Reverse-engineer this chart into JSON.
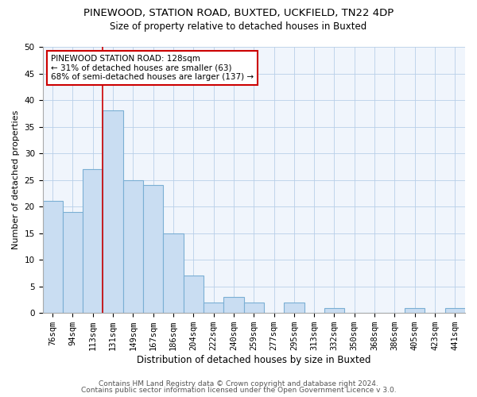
{
  "title": "PINEWOOD, STATION ROAD, BUXTED, UCKFIELD, TN22 4DP",
  "subtitle": "Size of property relative to detached houses in Buxted",
  "xlabel": "Distribution of detached houses by size in Buxted",
  "ylabel": "Number of detached properties",
  "bar_labels": [
    "76sqm",
    "94sqm",
    "113sqm",
    "131sqm",
    "149sqm",
    "167sqm",
    "186sqm",
    "204sqm",
    "222sqm",
    "240sqm",
    "259sqm",
    "277sqm",
    "295sqm",
    "313sqm",
    "332sqm",
    "350sqm",
    "368sqm",
    "386sqm",
    "405sqm",
    "423sqm",
    "441sqm"
  ],
  "bar_values": [
    21,
    19,
    27,
    38,
    25,
    24,
    15,
    7,
    2,
    3,
    2,
    0,
    2,
    0,
    1,
    0,
    0,
    0,
    1,
    0,
    1
  ],
  "bar_color": "#c9ddf2",
  "bar_edge_color": "#7bafd4",
  "vline_index": 3,
  "vline_color": "#cc0000",
  "ylim": [
    0,
    50
  ],
  "annotation_text": "PINEWOOD STATION ROAD: 128sqm\n← 31% of detached houses are smaller (63)\n68% of semi-detached houses are larger (137) →",
  "annotation_box_edge_color": "#cc0000",
  "footer1": "Contains HM Land Registry data © Crown copyright and database right 2024.",
  "footer2": "Contains public sector information licensed under the Open Government Licence v 3.0.",
  "title_fontsize": 9.5,
  "subtitle_fontsize": 8.5,
  "xlabel_fontsize": 8.5,
  "ylabel_fontsize": 8,
  "tick_fontsize": 7.5,
  "annotation_fontsize": 7.5,
  "footer_fontsize": 6.5,
  "yticks": [
    0,
    5,
    10,
    15,
    20,
    25,
    30,
    35,
    40,
    45,
    50
  ]
}
